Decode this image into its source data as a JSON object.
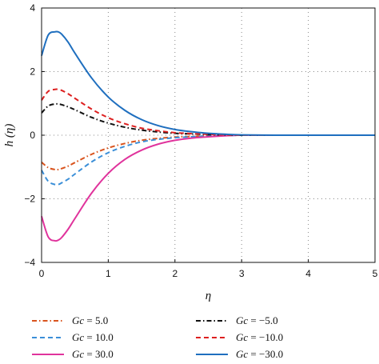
{
  "chart_data": {
    "type": "line",
    "xlabel": "η",
    "ylabel": "h (η)",
    "xlim": [
      0,
      5
    ],
    "ylim": [
      -4,
      4
    ],
    "xticks": [
      0,
      1,
      2,
      3,
      4,
      5
    ],
    "yticks": [
      -4,
      -2,
      0,
      2,
      4
    ],
    "grid": "dotted",
    "legend_placement": "bottom",
    "x": [
      0,
      0.1,
      0.2,
      0.25,
      0.3,
      0.4,
      0.5,
      0.75,
      1.0,
      1.25,
      1.5,
      1.75,
      2.0,
      2.25,
      2.5,
      2.75,
      3.0,
      3.5,
      4.0,
      4.5,
      5.0
    ],
    "series": [
      {
        "name": "Gc = 5.0",
        "color": "#d9541e",
        "dash": "dashdot",
        "values": [
          -0.85,
          -1.02,
          -1.08,
          -1.08,
          -1.05,
          -0.97,
          -0.86,
          -0.6,
          -0.4,
          -0.26,
          -0.16,
          -0.1,
          -0.06,
          -0.04,
          -0.02,
          -0.01,
          0,
          0,
          0,
          0,
          0
        ]
      },
      {
        "name": "Gc = 10.0",
        "color": "#3b8fd8",
        "dash": "dashed",
        "values": [
          -1.1,
          -1.45,
          -1.55,
          -1.55,
          -1.5,
          -1.38,
          -1.22,
          -0.84,
          -0.55,
          -0.35,
          -0.21,
          -0.13,
          -0.08,
          -0.05,
          -0.03,
          -0.01,
          0,
          0,
          0,
          0,
          0
        ]
      },
      {
        "name": "Gc = 30.0",
        "color": "#e0339c",
        "dash": "solid",
        "values": [
          -2.55,
          -3.2,
          -3.32,
          -3.3,
          -3.22,
          -2.95,
          -2.62,
          -1.82,
          -1.2,
          -0.76,
          -0.47,
          -0.28,
          -0.16,
          -0.09,
          -0.05,
          -0.02,
          0,
          0,
          0,
          0,
          0
        ]
      },
      {
        "name": "Gc = −5.0",
        "color": "#111111",
        "dash": "dashdot",
        "values": [
          0.7,
          0.92,
          0.98,
          0.98,
          0.96,
          0.89,
          0.8,
          0.56,
          0.38,
          0.25,
          0.16,
          0.1,
          0.06,
          0.04,
          0.02,
          0.01,
          0,
          0,
          0,
          0,
          0
        ]
      },
      {
        "name": "Gc = −10.0",
        "color": "#dd2020",
        "dash": "dashed",
        "values": [
          1.1,
          1.38,
          1.44,
          1.44,
          1.41,
          1.3,
          1.16,
          0.82,
          0.55,
          0.36,
          0.22,
          0.14,
          0.08,
          0.05,
          0.03,
          0.01,
          0,
          0,
          0,
          0,
          0
        ]
      },
      {
        "name": "Gc = −30.0",
        "color": "#1f6fbf",
        "dash": "solid",
        "values": [
          2.5,
          3.15,
          3.25,
          3.25,
          3.18,
          2.92,
          2.58,
          1.8,
          1.2,
          0.78,
          0.49,
          0.3,
          0.18,
          0.11,
          0.06,
          0.03,
          0.01,
          0,
          0,
          0,
          0
        ]
      }
    ]
  }
}
